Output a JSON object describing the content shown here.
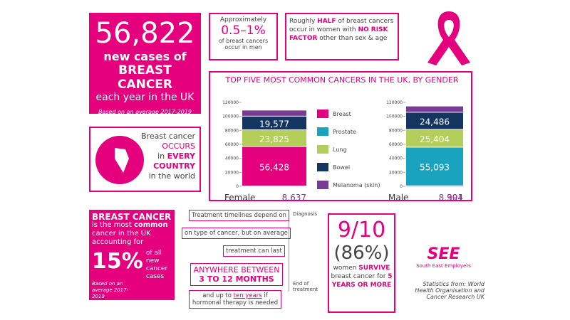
{
  "cases": {
    "number": "56,822",
    "line1": "new cases of",
    "line2": "BREAST CANCER",
    "line3": "each year in the UK",
    "note": "Based on an average 2017-2019"
  },
  "men": {
    "lead": "Approximately",
    "figure": "0.5–1%",
    "rest": "of breast cancers occur in men"
  },
  "risk": {
    "a": "Roughly",
    "b": "HALF",
    "c": "of breast cancers occur in women with",
    "d": "NO RISK FACTOR",
    "e": "other than sex & age"
  },
  "world": {
    "a": "Breast cancer",
    "b": "OCCURS",
    "c": "in",
    "d": "EVERY COUNTRY",
    "e": "in the world"
  },
  "common": {
    "a": "BREAST CANCER",
    "b": "is the most",
    "c": "common",
    "d": "cancer in the UK accounting for",
    "figure": "15%",
    "e": "of all new cancer cases",
    "note": "Based on an average 2017-2019"
  },
  "timeline": {
    "steps": [
      "Treatment timelines depend on",
      "on type of cancer, but on average",
      "treatment can last",
      "ANYWHERE BETWEEN",
      "3 TO 12 MONTHS",
      "and up to",
      "ten years",
      "if hormonal therapy is needed"
    ],
    "start": "Diagnosis",
    "end": "End of treatment"
  },
  "survive": {
    "fraction": "9/10",
    "percent": "(86%)",
    "a": "women",
    "b": "SURVIVE",
    "c": "breast cancer for",
    "d": "5 YEARS OR MORE"
  },
  "logo": {
    "mark": "SEE",
    "name": "South East Employers"
  },
  "source": "Statistics from: World Health Organisation and Cancer Research UK",
  "chart_data": {
    "type": "stacked-bar",
    "title": "TOP FIVE MOST COMMON CANCERS IN THE UK, BY GENDER",
    "categories": [
      "Female",
      "Male"
    ],
    "series": [
      {
        "name": "Breast",
        "color": "#e5007e",
        "values": [
          56428,
          394
        ],
        "value_labels": [
          "56,428",
          "394"
        ]
      },
      {
        "name": "Prostate",
        "color": "#1aa3bf",
        "values": [
          null,
          55093
        ],
        "value_labels": [
          null,
          "55,093"
        ]
      },
      {
        "name": "Lung",
        "color": "#b3cf5a",
        "values": [
          23825,
          25404
        ],
        "value_labels": [
          "23,825",
          "25,404"
        ]
      },
      {
        "name": "Bowel",
        "color": "#14355f",
        "values": [
          19577,
          24486
        ],
        "value_labels": [
          "19,577",
          "24,486"
        ]
      },
      {
        "name": "Melanoma (skin)",
        "color": "#7a3b94",
        "values": [
          8637,
          8901
        ],
        "value_labels": [
          "8,637",
          "8,901"
        ]
      }
    ],
    "ylim": [
      0,
      120000
    ],
    "yticks": [
      0,
      20000,
      40000,
      60000,
      80000,
      100000,
      120000
    ]
  }
}
